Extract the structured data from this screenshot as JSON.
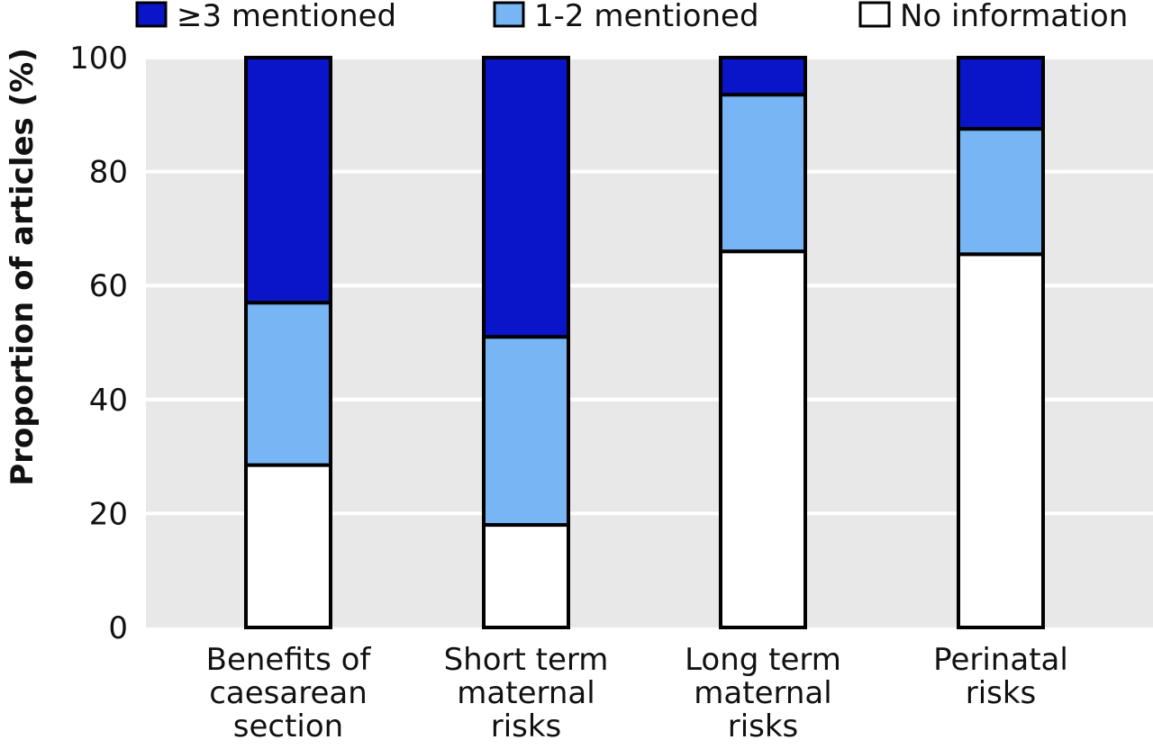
{
  "chart_data": {
    "type": "bar",
    "stacked": true,
    "ylabel": "Proportion of articles (%)",
    "ylim": [
      0,
      100
    ],
    "yticks": [
      0,
      20,
      40,
      60,
      80,
      100
    ],
    "grid": true,
    "legend_position": "top",
    "categories": [
      [
        "Benefits of",
        "caesarean",
        "section"
      ],
      [
        "Short term",
        "maternal",
        "risks"
      ],
      [
        "Long term",
        "maternal",
        "risks"
      ],
      [
        "Perinatal",
        "risks"
      ]
    ],
    "series": [
      {
        "name": "No information",
        "color": "#ffffff",
        "values": [
          28.5,
          18,
          66,
          65.5
        ]
      },
      {
        "name": "1-2 mentioned",
        "color": "#77b5f5",
        "values": [
          28.5,
          33,
          27.5,
          22
        ]
      },
      {
        "name": "≥3 mentioned",
        "color": "#0a14c8",
        "values": [
          43,
          49,
          6.5,
          12.5
        ]
      }
    ],
    "legend_order": [
      "≥3 mentioned",
      "1-2 mentioned",
      "No information"
    ],
    "plot_background": "#e8e8e8",
    "gridline_color": "#ffffff",
    "outline_color": "#000000"
  }
}
